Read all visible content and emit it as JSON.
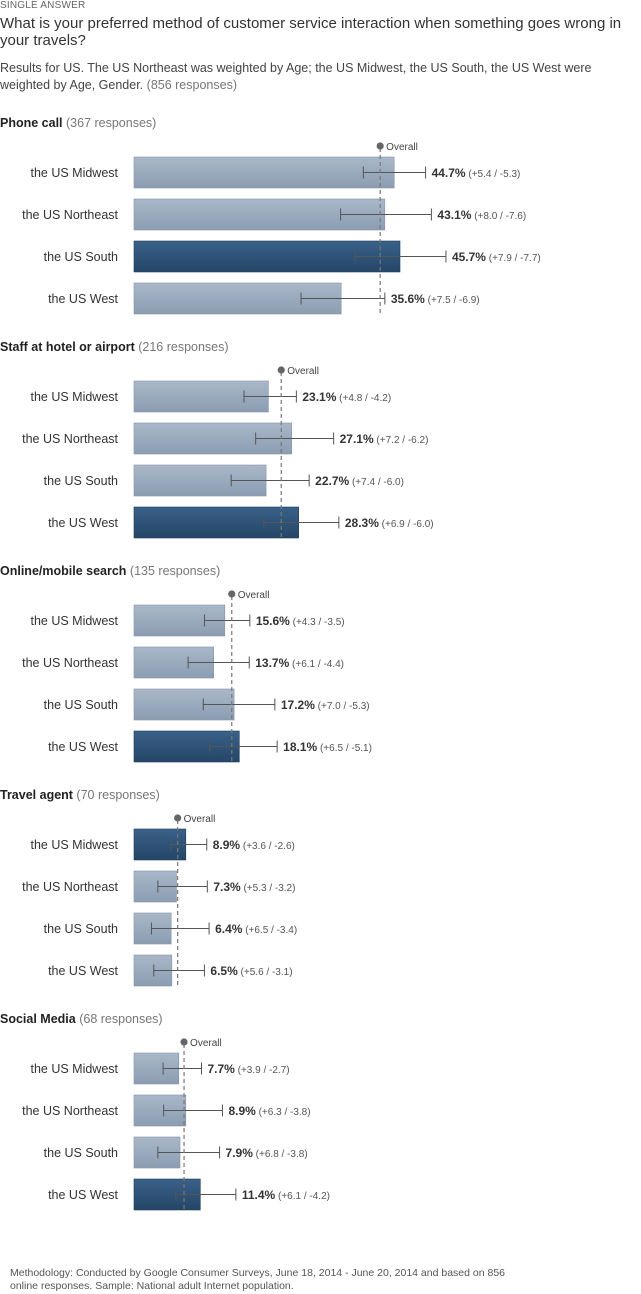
{
  "header": {
    "kicker": "SINGLE ANSWER",
    "question": "What is your preferred method of customer service interaction when something goes wrong in your travels?",
    "subtitle": "Results for US. The US Northeast was weighted by Age; the US Midwest, the US South, the US West were weighted by Age, Gender.",
    "responses": "(856 responses)"
  },
  "overall_label": "Overall",
  "colors": {
    "bar_default": "#97a7bb",
    "bar_highlight": "#2c5075",
    "error_bar": "#555555",
    "overall_line": "#777777"
  },
  "chart_data": {
    "type": "bar",
    "orientation": "horizontal",
    "categories": [
      "the US Midwest",
      "the US Northeast",
      "the US South",
      "the US West"
    ],
    "groups": [
      {
        "title": "Phone call",
        "responses": "(367 responses)",
        "overall": 42.3,
        "highlight_index": 2,
        "values": [
          44.7,
          43.1,
          45.7,
          35.6
        ],
        "value_labels": [
          "44.7%",
          "43.1%",
          "45.7%",
          "35.6%"
        ],
        "err_plus": [
          5.4,
          8.0,
          7.9,
          7.5
        ],
        "err_minus": [
          5.3,
          7.6,
          7.7,
          6.9
        ],
        "err_labels": [
          "(+5.4 / -5.3)",
          "(+8.0 / -7.6)",
          "(+7.9 / -7.7)",
          "(+7.5 / -6.9)"
        ]
      },
      {
        "title": "Staff at hotel or airport",
        "responses": "(216 responses)",
        "overall": 25.3,
        "highlight_index": 3,
        "values": [
          23.1,
          27.1,
          22.7,
          28.3
        ],
        "value_labels": [
          "23.1%",
          "27.1%",
          "22.7%",
          "28.3%"
        ],
        "err_plus": [
          4.8,
          7.2,
          7.4,
          6.9
        ],
        "err_minus": [
          4.2,
          6.2,
          6.0,
          6.0
        ],
        "err_labels": [
          "(+4.8 / -4.2)",
          "(+7.2 / -6.2)",
          "(+7.4 / -6.0)",
          "(+6.9 / -6.0)"
        ]
      },
      {
        "title": "Online/mobile search",
        "responses": "(135 responses)",
        "overall": 16.8,
        "highlight_index": 3,
        "values": [
          15.6,
          13.7,
          17.2,
          18.1
        ],
        "value_labels": [
          "15.6%",
          "13.7%",
          "17.2%",
          "18.1%"
        ],
        "err_plus": [
          4.3,
          6.1,
          7.0,
          6.5
        ],
        "err_minus": [
          3.5,
          4.4,
          5.3,
          5.1
        ],
        "err_labels": [
          "(+4.3 / -3.5)",
          "(+6.1 / -4.4)",
          "(+7.0 / -5.3)",
          "(+6.5 / -5.1)"
        ]
      },
      {
        "title": "Travel agent",
        "responses": "(70 responses)",
        "overall": 7.5,
        "highlight_index": 0,
        "values": [
          8.9,
          7.3,
          6.4,
          6.5
        ],
        "value_labels": [
          "8.9%",
          "7.3%",
          "6.4%",
          "6.5%"
        ],
        "err_plus": [
          3.6,
          5.3,
          6.5,
          5.6
        ],
        "err_minus": [
          2.6,
          3.2,
          3.4,
          3.1
        ],
        "err_labels": [
          "(+3.6 / -2.6)",
          "(+5.3 / -3.2)",
          "(+6.5 / -3.4)",
          "(+5.6 / -3.1)"
        ]
      },
      {
        "title": "Social Media",
        "responses": "(68 responses)",
        "overall": 8.6,
        "highlight_index": 3,
        "values": [
          7.7,
          8.9,
          7.9,
          11.4
        ],
        "value_labels": [
          "7.7%",
          "8.9%",
          "7.9%",
          "11.4%"
        ],
        "err_plus": [
          3.9,
          6.3,
          6.8,
          6.1
        ],
        "err_minus": [
          2.7,
          3.8,
          3.8,
          4.2
        ],
        "err_labels": [
          "(+3.9 / -2.7)",
          "(+6.3 / -3.8)",
          "(+6.8 / -3.8)",
          "(+6.1 / -4.2)"
        ]
      }
    ],
    "grid": false,
    "legend": "none"
  },
  "footer": {
    "methodology": "Methodology: Conducted by Google Consumer Surveys, June 18, 2014 - June 20, 2014 and based on 856 online responses. Sample: National adult Internet population."
  }
}
